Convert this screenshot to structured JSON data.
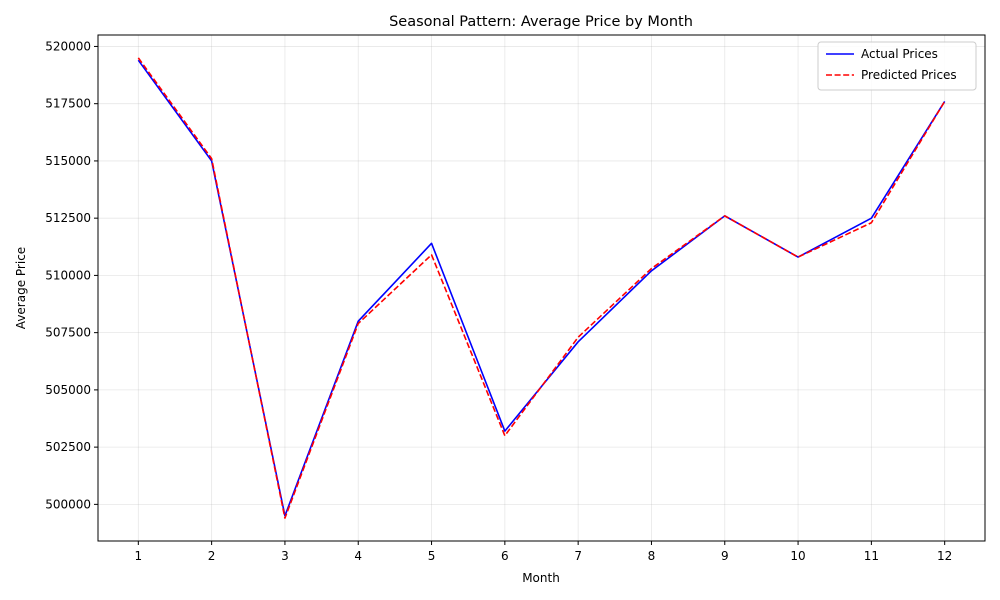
{
  "chart_data": {
    "type": "line",
    "title": "Seasonal Pattern: Average Price by Month",
    "xlabel": "Month",
    "ylabel": "Average Price",
    "x": [
      1,
      2,
      3,
      4,
      5,
      6,
      7,
      8,
      9,
      10,
      11,
      12
    ],
    "xlim": [
      0.45,
      12.55
    ],
    "ylim": [
      498400,
      520500
    ],
    "yticks": [
      500000,
      502500,
      505000,
      507500,
      510000,
      512500,
      515000,
      517500,
      520000
    ],
    "grid": true,
    "legend_position": "top-right",
    "series": [
      {
        "name": "Actual Prices",
        "color": "#0000ff",
        "style": "solid",
        "values": [
          519400,
          515000,
          499500,
          508000,
          511400,
          503200,
          507100,
          510200,
          512600,
          510800,
          512500,
          517600
        ]
      },
      {
        "name": "Predicted Prices",
        "color": "#ff0000",
        "style": "dashed",
        "values": [
          519500,
          515100,
          499400,
          507900,
          510900,
          503000,
          507300,
          510300,
          512600,
          510800,
          512300,
          517600
        ]
      }
    ]
  }
}
